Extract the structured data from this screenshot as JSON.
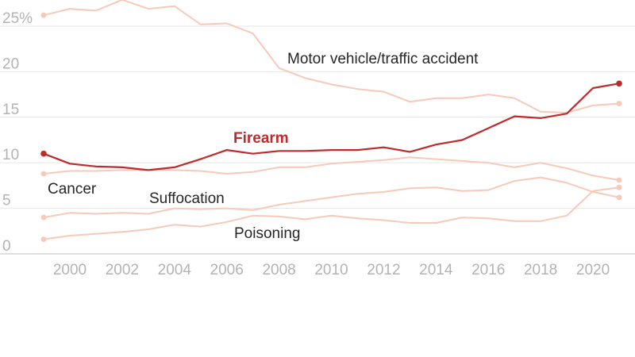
{
  "chart_data": {
    "type": "line",
    "x": [
      1999,
      2000,
      2001,
      2002,
      2003,
      2004,
      2005,
      2006,
      2007,
      2008,
      2009,
      2010,
      2011,
      2012,
      2013,
      2014,
      2015,
      2016,
      2017,
      2018,
      2019,
      2020,
      2021
    ],
    "x_ticks": [
      "2000",
      "2002",
      "2004",
      "2006",
      "2008",
      "2010",
      "2012",
      "2014",
      "2016",
      "2018",
      "2020"
    ],
    "y_ticks": [
      "25%",
      "20",
      "15",
      "10",
      "5",
      "0"
    ],
    "ylim": [
      0,
      27
    ],
    "grid": true,
    "series": [
      {
        "name": "Motor vehicle/traffic accident",
        "color": "#f6c9b8",
        "values": [
          26.2,
          26.9,
          26.7,
          27.9,
          26.9,
          27.2,
          25.2,
          25.3,
          24.2,
          20.4,
          19.3,
          18.6,
          18.1,
          17.8,
          16.7,
          17.1,
          17.1,
          17.5,
          17.1,
          15.6,
          15.5,
          16.3,
          16.5
        ]
      },
      {
        "name": "Firearm",
        "color": "#bf2a2a",
        "values": [
          11.0,
          9.9,
          9.6,
          9.5,
          9.2,
          9.5,
          10.4,
          11.4,
          11.0,
          11.3,
          11.3,
          11.4,
          11.4,
          11.7,
          11.2,
          12.0,
          12.5,
          13.8,
          15.1,
          14.9,
          15.4,
          18.2,
          18.7
        ]
      },
      {
        "name": "Cancer",
        "color": "#f6c9b8",
        "values": [
          8.8,
          9.1,
          9.1,
          9.2,
          9.2,
          9.2,
          9.1,
          8.8,
          9.0,
          9.5,
          9.5,
          9.9,
          10.1,
          10.3,
          10.6,
          10.4,
          10.2,
          10.0,
          9.5,
          10.0,
          9.4,
          8.6,
          8.1
        ]
      },
      {
        "name": "Suffocation",
        "color": "#f6c9b8",
        "values": [
          4.0,
          4.5,
          4.4,
          4.5,
          4.4,
          5.0,
          4.9,
          5.0,
          4.8,
          5.4,
          5.8,
          6.2,
          6.6,
          6.8,
          7.2,
          7.3,
          6.9,
          7.0,
          8.0,
          8.4,
          7.8,
          6.8,
          6.2
        ]
      },
      {
        "name": "Poisoning",
        "color": "#f6c9b8",
        "values": [
          1.6,
          2.0,
          2.2,
          2.4,
          2.7,
          3.2,
          3.0,
          3.5,
          4.2,
          4.1,
          3.8,
          4.2,
          3.9,
          3.7,
          3.4,
          3.4,
          4.0,
          3.9,
          3.6,
          3.6,
          4.2,
          6.9,
          7.3
        ]
      }
    ]
  }
}
